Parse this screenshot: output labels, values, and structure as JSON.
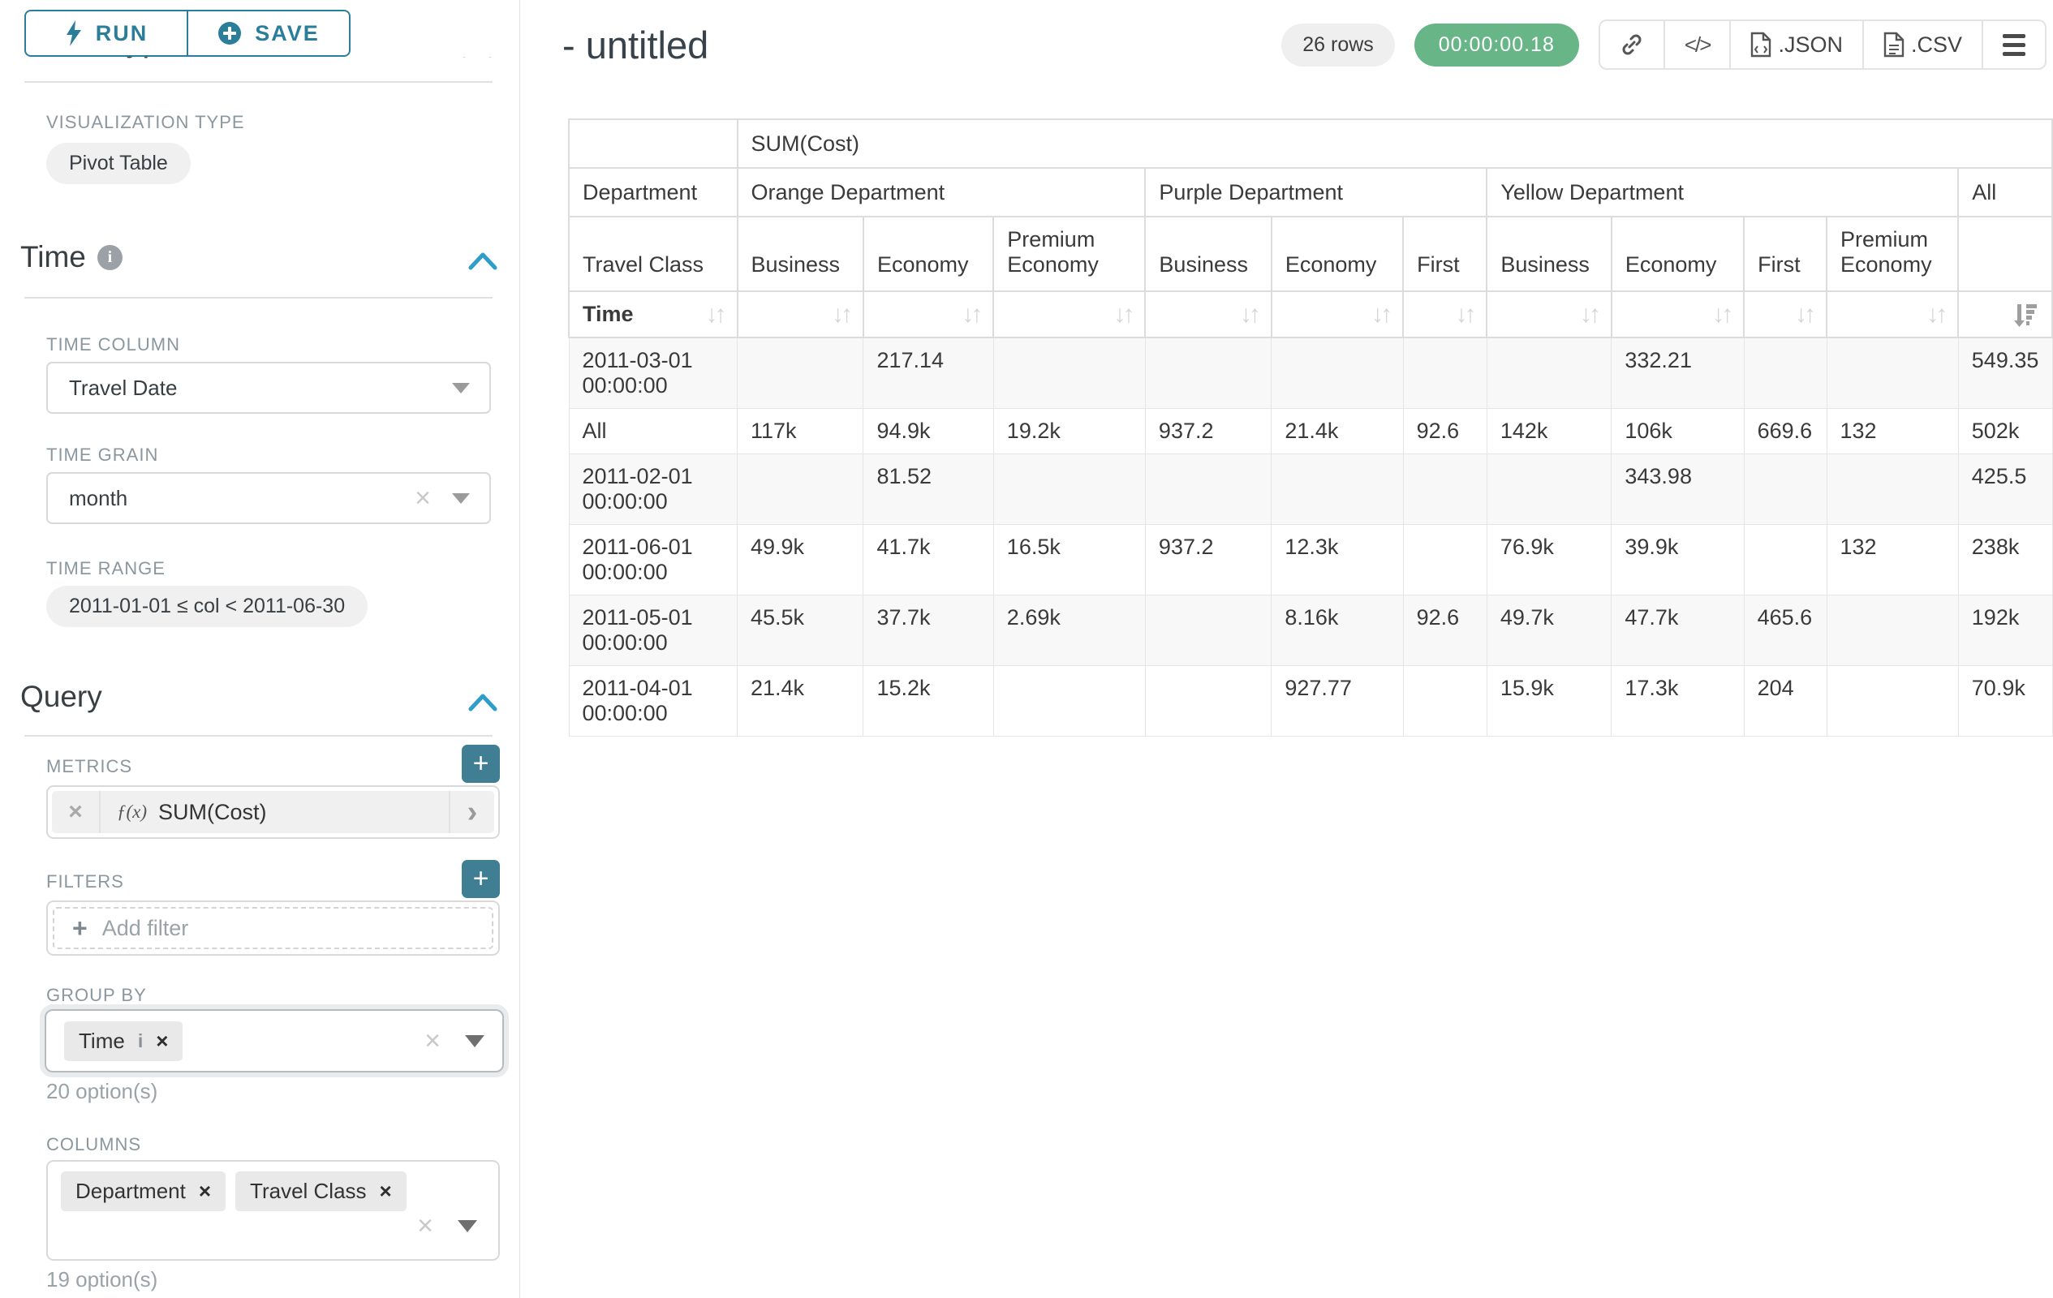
{
  "sidebar": {
    "run_label": "RUN",
    "save_label": "SAVE",
    "chart_type_heading": "Chart Type",
    "viz_type_label": "VISUALIZATION TYPE",
    "viz_type_value": "Pivot Table",
    "time_section": {
      "title": "Time",
      "time_column_label": "TIME COLUMN",
      "time_column_value": "Travel Date",
      "time_grain_label": "TIME GRAIN",
      "time_grain_value": "month",
      "time_range_label": "TIME RANGE",
      "time_range_value": "2011-01-01 ≤ col < 2011-06-30"
    },
    "query_section": {
      "title": "Query",
      "metrics_label": "METRICS",
      "metric_fx": "ƒ(x)",
      "metric_value": "SUM(Cost)",
      "filters_label": "FILTERS",
      "add_filter_label": "Add filter",
      "group_by_label": "GROUP BY",
      "group_by_tags": [
        "Time"
      ],
      "group_by_options": "20 option(s)",
      "columns_label": "COLUMNS",
      "columns_tags": [
        "Department",
        "Travel Class"
      ],
      "columns_options": "19 option(s)"
    }
  },
  "header": {
    "title": "- untitled",
    "row_count": "26 rows",
    "timer": "00:00:00.18",
    "export_json_label": ".JSON",
    "export_csv_label": ".CSV"
  },
  "colors": {
    "accent_teal": "#2b7e99",
    "plus_button_teal": "#3f7e93",
    "chevron_blue": "#2f9dc9",
    "timer_green": "#68b588"
  },
  "chart_data": {
    "type": "table",
    "title": "SUM(Cost)",
    "metric": "SUM(Cost)",
    "row_dimension": "Time",
    "col_dimensions_labels": {
      "row1": "Department",
      "row2": "Travel Class",
      "row3": "Time"
    },
    "column_groups": [
      {
        "department": "Orange Department",
        "classes": [
          "Business",
          "Economy",
          "Premium Economy"
        ]
      },
      {
        "department": "Purple Department",
        "classes": [
          "Business",
          "Economy",
          "First"
        ]
      },
      {
        "department": "Yellow Department",
        "classes": [
          "Business",
          "Economy",
          "First",
          "Premium Economy"
        ]
      },
      {
        "department": "All",
        "classes": [
          ""
        ]
      }
    ],
    "sort": {
      "column": "All",
      "direction": "desc"
    },
    "rows": [
      {
        "label": "2011-03-01 00:00:00",
        "values": [
          "",
          "217.14",
          "",
          "",
          "",
          "",
          "",
          "332.21",
          "",
          "",
          "549.35"
        ]
      },
      {
        "label": "All",
        "values": [
          "117k",
          "94.9k",
          "19.2k",
          "937.2",
          "21.4k",
          "92.6",
          "142k",
          "106k",
          "669.6",
          "132",
          "502k"
        ]
      },
      {
        "label": "2011-02-01 00:00:00",
        "values": [
          "",
          "81.52",
          "",
          "",
          "",
          "",
          "",
          "343.98",
          "",
          "",
          "425.5"
        ]
      },
      {
        "label": "2011-06-01 00:00:00",
        "values": [
          "49.9k",
          "41.7k",
          "16.5k",
          "937.2",
          "12.3k",
          "",
          "76.9k",
          "39.9k",
          "",
          "132",
          "238k"
        ]
      },
      {
        "label": "2011-05-01 00:00:00",
        "values": [
          "45.5k",
          "37.7k",
          "2.69k",
          "",
          "8.16k",
          "92.6",
          "49.7k",
          "47.7k",
          "465.6",
          "",
          "192k"
        ]
      },
      {
        "label": "2011-04-01 00:00:00",
        "values": [
          "21.4k",
          "15.2k",
          "",
          "",
          "927.77",
          "",
          "15.9k",
          "17.3k",
          "204",
          "",
          "70.9k"
        ]
      }
    ]
  }
}
